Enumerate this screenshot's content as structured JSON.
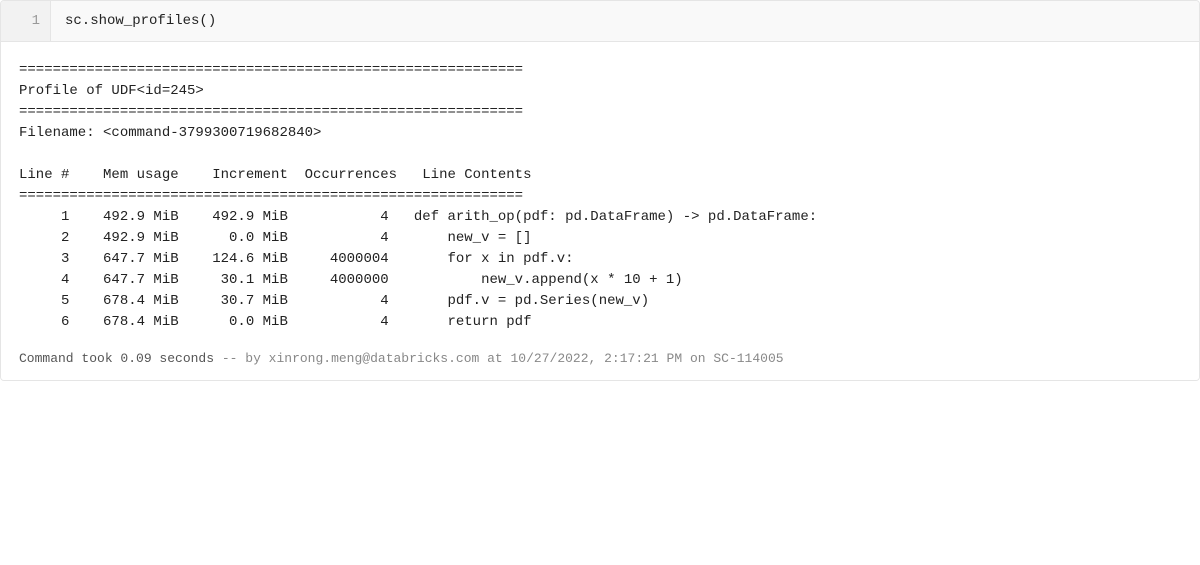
{
  "code": {
    "line_number": "1",
    "content": "sc.show_profiles()"
  },
  "output": {
    "border": "============================================================",
    "profile_header": "Profile of UDF<id=245>",
    "filename_line": "Filename: <command-3799300719682840>",
    "columns_header": "Line #    Mem usage    Increment  Occurrences   Line Contents",
    "rows": [
      {
        "line": "     1    492.9 MiB    492.9 MiB           4   def arith_op(pdf: pd.DataFrame) -> pd.DataFrame:"
      },
      {
        "line": "     2    492.9 MiB      0.0 MiB           4       new_v = []"
      },
      {
        "line": "     3    647.7 MiB    124.6 MiB     4000004       for x in pdf.v:"
      },
      {
        "line": "     4    647.7 MiB     30.1 MiB     4000000           new_v.append(x * 10 + 1)"
      },
      {
        "line": "     5    678.4 MiB     30.7 MiB           4       pdf.v = pd.Series(new_v)"
      },
      {
        "line": "     6    678.4 MiB      0.0 MiB           4       return pdf"
      }
    ]
  },
  "footer": {
    "duration_prefix": "Command took ",
    "duration": "0.09 seconds",
    "sep": " -- ",
    "by": "by xinrong.meng@databricks.com at 10/27/2022, 2:17:21 PM on SC-114005"
  },
  "colors": {
    "background": "#ffffff",
    "code_bg": "#f9f9f9",
    "gutter_bg": "#f2f2f2",
    "border": "#e5e5e5",
    "text": "#222222",
    "muted": "#888888"
  },
  "typography": {
    "font_family": "Menlo, Monaco, Consolas, Courier New, monospace",
    "font_size_pt": 14,
    "line_height": 1.5
  }
}
